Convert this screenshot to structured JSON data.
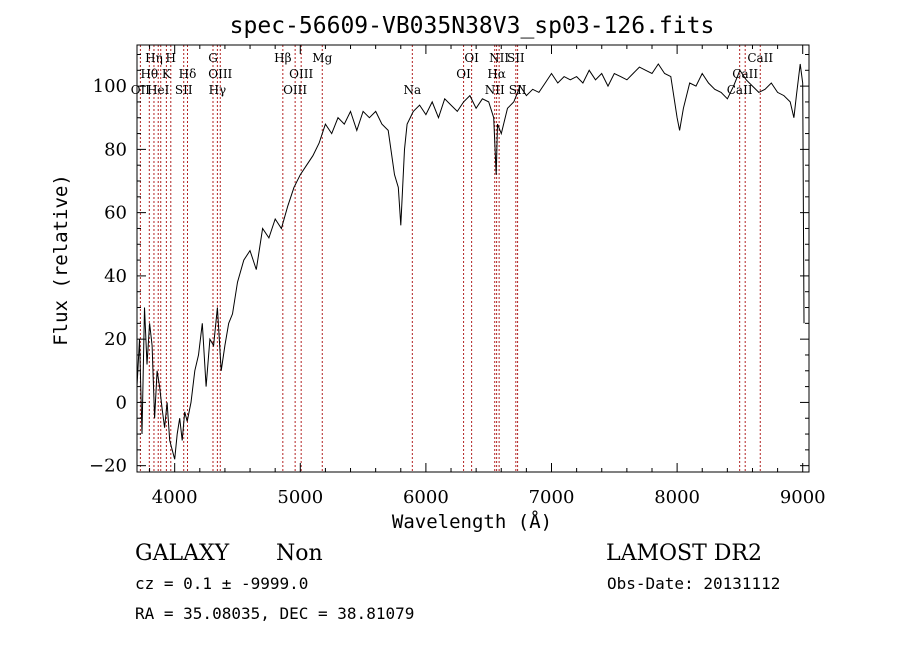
{
  "chart_data": {
    "type": "line",
    "title": "spec-56609-VB035N38V3_sp03-126.fits",
    "xlabel": "Wavelength (Å)",
    "ylabel": "Flux (relative)",
    "xlim": [
      3700,
      9050
    ],
    "ylim": [
      -22,
      113
    ],
    "xticks": [
      4000,
      5000,
      6000,
      7000,
      8000,
      9000
    ],
    "yticks": [
      -20,
      0,
      20,
      40,
      60,
      80,
      100
    ],
    "line_color": "#000000",
    "marker_color": "#b22222",
    "series": [
      {
        "x": [
          3700,
          3720,
          3740,
          3760,
          3780,
          3800,
          3820,
          3840,
          3860,
          3880,
          3900,
          3920,
          3940,
          3960,
          3980,
          4000,
          4020,
          4040,
          4060,
          4080,
          4100,
          4130,
          4160,
          4190,
          4220,
          4250,
          4280,
          4310,
          4340,
          4370,
          4400,
          4430,
          4460,
          4500,
          4550,
          4600,
          4650,
          4700,
          4750,
          4800,
          4850,
          4900,
          4950,
          5000,
          5050,
          5100,
          5150,
          5200,
          5250,
          5300,
          5350,
          5400,
          5450,
          5500,
          5550,
          5600,
          5650,
          5700,
          5750,
          5780,
          5800,
          5830,
          5850,
          5900,
          5950,
          6000,
          6050,
          6100,
          6150,
          6200,
          6250,
          6300,
          6350,
          6400,
          6450,
          6500,
          6540,
          6560,
          6570,
          6600,
          6650,
          6700,
          6750,
          6800,
          6850,
          6900,
          6950,
          7000,
          7050,
          7100,
          7150,
          7200,
          7250,
          7300,
          7350,
          7400,
          7450,
          7500,
          7550,
          7600,
          7650,
          7700,
          7750,
          7800,
          7850,
          7900,
          7950,
          8000,
          8020,
          8050,
          8100,
          8150,
          8200,
          8250,
          8300,
          8350,
          8400,
          8450,
          8500,
          8550,
          8600,
          8650,
          8700,
          8750,
          8800,
          8850,
          8900,
          8930,
          8950,
          8980,
          9000,
          9010
        ],
        "y": [
          5,
          20,
          -10,
          30,
          12,
          25,
          18,
          -5,
          10,
          5,
          -2,
          -8,
          0,
          -12,
          -15,
          -18,
          -10,
          -5,
          -12,
          -3,
          -6,
          0,
          10,
          15,
          25,
          5,
          20,
          18,
          30,
          10,
          18,
          25,
          28,
          38,
          45,
          48,
          42,
          55,
          52,
          58,
          55,
          62,
          68,
          72,
          75,
          78,
          82,
          88,
          85,
          90,
          88,
          92,
          86,
          92,
          90,
          92,
          88,
          86,
          72,
          68,
          56,
          80,
          88,
          92,
          94,
          91,
          95,
          90,
          96,
          94,
          92,
          95,
          97,
          93,
          96,
          95,
          90,
          72,
          88,
          85,
          93,
          95,
          100,
          97,
          99,
          98,
          101,
          104,
          101,
          103,
          102,
          103,
          101,
          105,
          102,
          104,
          100,
          104,
          103,
          102,
          104,
          106,
          105,
          104,
          107,
          104,
          103,
          90,
          86,
          93,
          101,
          100,
          104,
          101,
          99,
          98,
          96,
          100,
          105,
          102,
          100,
          98,
          99,
          101,
          98,
          97,
          95,
          90,
          97,
          107,
          101,
          25
        ]
      }
    ],
    "lines": [
      {
        "wl": 3727,
        "label": "OII",
        "row": 2
      },
      {
        "wl": 3798,
        "label": "Hθ",
        "row": 1
      },
      {
        "wl": 3835,
        "label": "Hη",
        "row": 0
      },
      {
        "wl": 3869,
        "label": "HeI",
        "row": 2
      },
      {
        "wl": 3889,
        "label": "",
        "row": 0
      },
      {
        "wl": 3934,
        "label": "K",
        "row": 1
      },
      {
        "wl": 3969,
        "label": "H",
        "row": 0
      },
      {
        "wl": 4072,
        "label": "SII",
        "row": 2
      },
      {
        "wl": 4102,
        "label": "Hδ",
        "row": 1
      },
      {
        "wl": 4305,
        "label": "G",
        "row": 0
      },
      {
        "wl": 4340,
        "label": "Hγ",
        "row": 2
      },
      {
        "wl": 4363,
        "label": "OIII",
        "row": 1
      },
      {
        "wl": 4861,
        "label": "Hβ",
        "row": 0
      },
      {
        "wl": 4959,
        "label": "OIII",
        "row": 2
      },
      {
        "wl": 5007,
        "label": "OIII",
        "row": 1
      },
      {
        "wl": 5175,
        "label": "Mg",
        "row": 0
      },
      {
        "wl": 5892,
        "label": "Na",
        "row": 2
      },
      {
        "wl": 6300,
        "label": "OI",
        "row": 1
      },
      {
        "wl": 6364,
        "label": "OI",
        "row": 0
      },
      {
        "wl": 6548,
        "label": "NII",
        "row": 2
      },
      {
        "wl": 6563,
        "label": "Hα",
        "row": 1
      },
      {
        "wl": 6583,
        "label": "NII",
        "row": 0
      },
      {
        "wl": 6716,
        "label": "SII",
        "row": 0
      },
      {
        "wl": 6730,
        "label": "SII",
        "row": 2
      },
      {
        "wl": 8498,
        "label": "CaII",
        "row": 2
      },
      {
        "wl": 8542,
        "label": "CaII",
        "row": 1
      },
      {
        "wl": 8662,
        "label": "CaII",
        "row": 0
      }
    ]
  },
  "info": {
    "class": "GALAXY",
    "subclass": "Non",
    "survey": "LAMOST DR2",
    "cz": "cz = 0.1 ± -9999.0",
    "obs_date": "Obs-Date: 20131112",
    "coords": "RA =  35.08035, DEC =  38.81079"
  }
}
